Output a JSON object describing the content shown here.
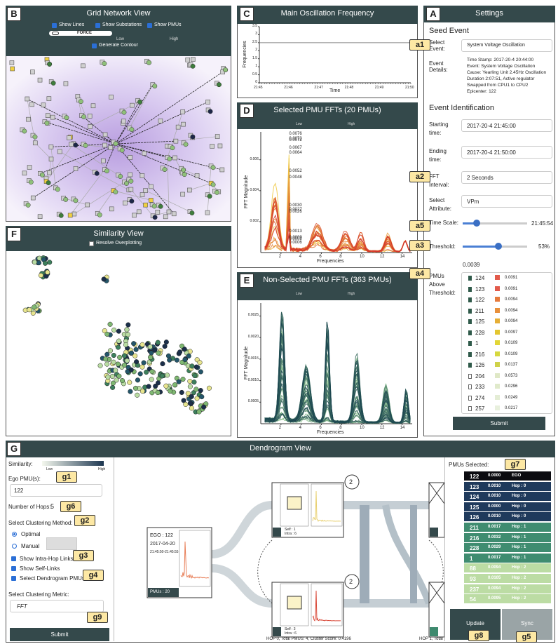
{
  "panel_letters": [
    "A",
    "B",
    "C",
    "D",
    "E",
    "F",
    "G"
  ],
  "callouts": [
    "a1",
    "a2",
    "a3",
    "a4",
    "a5",
    "g1",
    "g2",
    "g3",
    "g4",
    "g5",
    "g6",
    "g7",
    "g8",
    "g9"
  ],
  "grid_network": {
    "title": "Grid Network View",
    "checkboxes": [
      "Show Lines",
      "Show Substations",
      "Show PMUs"
    ],
    "force": "FORCE",
    "low": "Low",
    "high": "High",
    "contour": "Generate Contour"
  },
  "similarity": {
    "title": "Similarity View",
    "option": "Resolve Overplotting"
  },
  "main_frequency": {
    "title": "Main Oscillation Frequency",
    "y_label": "Frequencies",
    "x_label": "Time",
    "yticks": [
      0,
      0.5,
      1,
      1.5,
      2,
      2.5,
      3,
      3.5
    ],
    "xticks": [
      "21:45",
      "21:46",
      "21:47",
      "21:48",
      "21:49",
      "21:50"
    ],
    "frequency": 2.5
  },
  "selected_ffts": {
    "title": "Selected PMU FFTs (20 PMUs)",
    "low": "Low",
    "high": "High",
    "y_label": "FFT Magnitude",
    "x_label": "Frequencies",
    "yticks": [
      "0.002",
      "0.004",
      "0.006"
    ],
    "xticks": [
      2,
      4,
      6,
      8,
      10,
      12,
      14
    ],
    "peak_labels": [
      "0.0076",
      "0.0073",
      "0.0072",
      "0.0067",
      "0.0064",
      "0.0052",
      "0.0048",
      "0.0030",
      "0.0027",
      "0.0026",
      "0.0013",
      "0.0009",
      "0.0008",
      "0.0006"
    ]
  },
  "non_selected_ffts": {
    "title": "Non-Selected PMU FFTs (363 PMUs)",
    "low": "Low",
    "high": "High",
    "y_label": "FFT Magnitude",
    "x_label": "Frequencies",
    "yticks": [
      "0.0005",
      "0.0010",
      "0.0015",
      "0.0020",
      "0.0025"
    ],
    "xticks": [
      2,
      4,
      6,
      8,
      10,
      12,
      14
    ]
  },
  "settings": {
    "title": "Settings",
    "seed_event": "Seed Event",
    "select_event_label": "Select Event:",
    "event": "System Voltage Oscillation",
    "event_details_label": "Event Details:",
    "event_details": [
      "Time Stamp: 2017-20-4 20:44:00",
      "Event: System Voltage Oscillation",
      "Cause: Yearling Unit 2.45Hz Oscillation",
      "Duration 2:07:51, Active regulator",
      "Swapped from CPU1 to CPU2",
      "Epicenter: 122"
    ],
    "event_identification": "Event Identification",
    "fields": [
      {
        "label": "Starting time:",
        "value": "2017-20-4 21:45:00"
      },
      {
        "label": "Ending time:",
        "value": "2017-20-4 21:50:00"
      },
      {
        "label": "FFT Interval:",
        "value": "2 Seconds"
      },
      {
        "label": "Select Attribute:",
        "value": "VPm"
      }
    ],
    "time_scale_label": "Time Scale:",
    "time_scale_value": "21:45:54",
    "threshold_label": "Threshold:",
    "threshold_value": "53%",
    "threshold_magnitude": "0.0039",
    "pmus_label": "PMUs Above Threshold:",
    "pmus": [
      [
        "124",
        "0.0091"
      ],
      [
        "123",
        "0.0091"
      ],
      [
        "122",
        "0.0094"
      ],
      [
        "211",
        "0.0094"
      ],
      [
        "125",
        "0.0094"
      ],
      [
        "228",
        "0.0097"
      ],
      [
        "1",
        "0.0109"
      ],
      [
        "216",
        "0.0109"
      ],
      [
        "126",
        "0.0137"
      ],
      [
        "204",
        "0.0573"
      ],
      [
        "233",
        "0.0296"
      ],
      [
        "274",
        "0.0249"
      ],
      [
        "257",
        "0.0217"
      ]
    ],
    "submit": "Submit"
  },
  "dendrogram": {
    "title": "Dendrogram View",
    "similarity_label": "Similarity:",
    "low": "Low",
    "high": "High",
    "ego_label": "Ego PMU(s):",
    "ego_value": "122",
    "hops_label": "Number of Hops:",
    "hops_value": "5",
    "method_label": "Select Clustering Method:",
    "methods": [
      "Optimal",
      "Manual"
    ],
    "options": [
      "Show Intra-Hop Links",
      "Show Self-Links",
      "Select Dendrogram PMUs"
    ],
    "metric_label": "Select Clustering Metric:",
    "metric": "FFT",
    "submit": "Submit",
    "ego_node": {
      "lines": [
        "EGO : 122",
        "2017-04-20",
        "21:45:50-21:45:55"
      ],
      "pmus": "PMUs : 20"
    },
    "clusters": [
      {
        "count": "2",
        "summary": [
          "Self : 1",
          "Intra : 6"
        ]
      },
      {
        "count": "2",
        "summary": [
          "Self : 3",
          "Intra : 6"
        ]
      }
    ],
    "footer": [
      "HOP 0, Total PMUS: 4, Cluster Score: 0.4196",
      "HOP 1, Total"
    ],
    "selected_label": "PMUs Selected:",
    "selected": [
      [
        "122",
        "0.0000",
        "EGO"
      ],
      [
        "123",
        "0.0010",
        "Hop : 0"
      ],
      [
        "124",
        "0.0010",
        "Hop : 0"
      ],
      [
        "125",
        "0.0000",
        "Hop : 0"
      ],
      [
        "126",
        "0.0010",
        "Hop : 0"
      ],
      [
        "211",
        "0.0017",
        "Hop : 1"
      ],
      [
        "216",
        "0.0032",
        "Hop : 1"
      ],
      [
        "228",
        "0.0029",
        "Hop : 1"
      ],
      [
        "1",
        "0.0017",
        "Hop : 1"
      ],
      [
        "88",
        "0.0094",
        "Hop : 2"
      ],
      [
        "93",
        "0.0105",
        "Hop : 2"
      ],
      [
        "237",
        "0.0094",
        "Hop : 2"
      ],
      [
        "54",
        "0.0095",
        "Hop : 2"
      ]
    ],
    "update": "Update",
    "sync": "Sync"
  }
}
